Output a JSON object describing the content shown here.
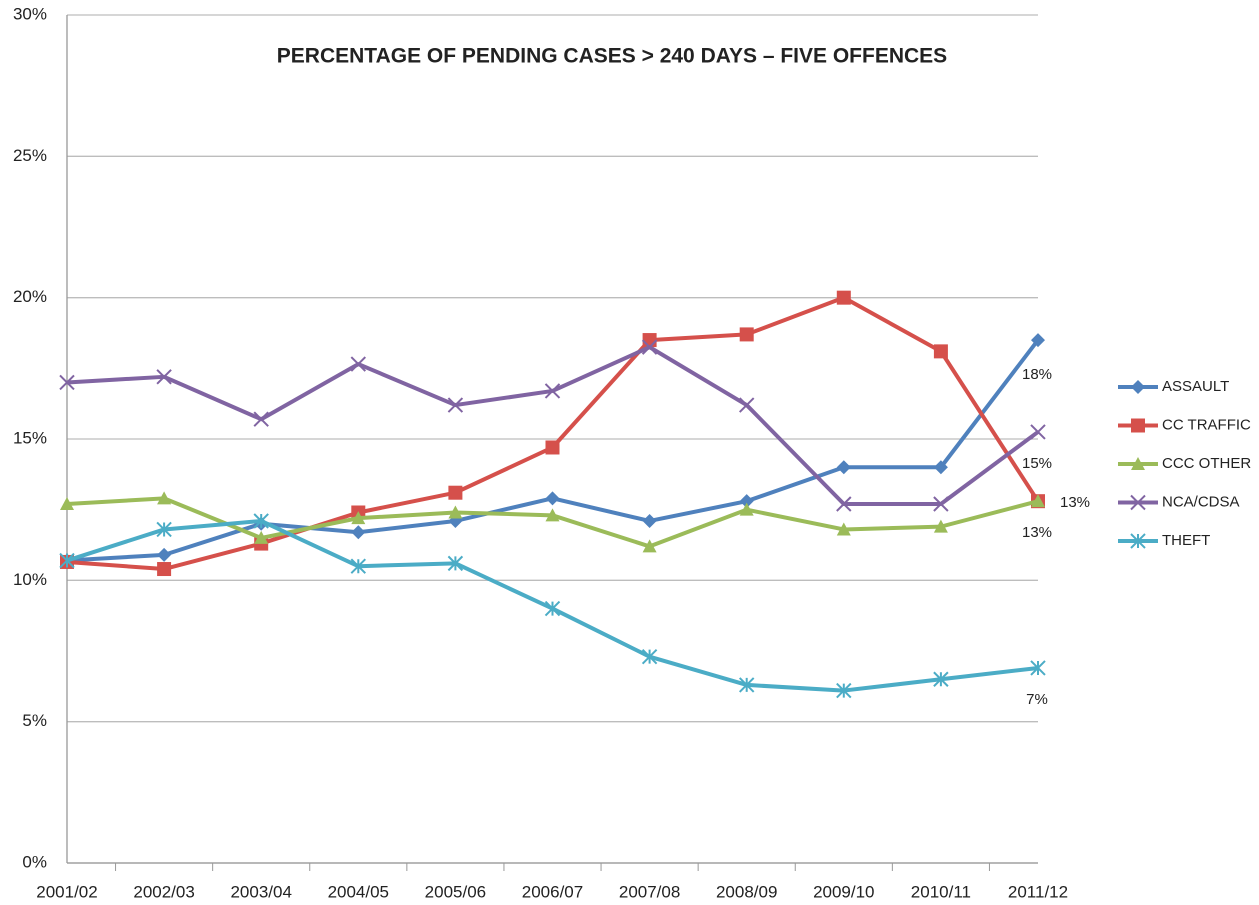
{
  "chart_data": {
    "type": "line",
    "title": "PERCENTAGE OF PENDING CASES > 240 DAYS – FIVE OFFENCES",
    "categories": [
      "2001/02",
      "2002/03",
      "2003/04",
      "2004/05",
      "2005/06",
      "2006/07",
      "2007/08",
      "2008/09",
      "2009/10",
      "2010/11",
      "2011/12"
    ],
    "series": [
      {
        "name": "ASSAULT",
        "color": "#4f81bd",
        "marker": "diamond",
        "values": [
          10.7,
          10.9,
          12.0,
          11.7,
          12.1,
          12.9,
          12.1,
          12.8,
          14.0,
          14.0,
          18.5
        ]
      },
      {
        "name": "CC TRAFFIC",
        "color": "#d5504b",
        "marker": "square",
        "values": [
          10.65,
          10.4,
          11.3,
          12.4,
          13.1,
          14.7,
          18.5,
          18.7,
          20.0,
          18.1,
          12.8
        ]
      },
      {
        "name": "CCC OTHER",
        "color": "#9bbb59",
        "marker": "triangle",
        "values": [
          12.7,
          12.9,
          11.5,
          12.2,
          12.4,
          12.3,
          11.2,
          12.5,
          11.8,
          11.9,
          12.8
        ]
      },
      {
        "name": "NCA/CDSA",
        "color": "#8064a2",
        "marker": "cross",
        "values": [
          17.0,
          17.2,
          15.7,
          17.65,
          16.2,
          16.7,
          18.25,
          16.2,
          12.7,
          12.7,
          15.25
        ]
      },
      {
        "name": "THEFT",
        "color": "#4bacc6",
        "marker": "star",
        "values": [
          10.7,
          11.8,
          12.1,
          10.5,
          10.6,
          9.0,
          7.3,
          6.3,
          6.1,
          6.5,
          6.9
        ]
      }
    ],
    "annotations": [
      "18%",
      "15%",
      "13%",
      "13%",
      "7%"
    ],
    "ylim": [
      0,
      30
    ],
    "yticks": [
      {
        "value": 0,
        "label": "0%"
      },
      {
        "value": 5,
        "label": "5%"
      },
      {
        "value": 10,
        "label": "10%"
      },
      {
        "value": 15,
        "label": "15%"
      },
      {
        "value": 20,
        "label": "20%"
      },
      {
        "value": 25,
        "label": "25%"
      },
      {
        "value": 30,
        "label": "30%"
      }
    ],
    "grid": true,
    "legend": "right"
  }
}
